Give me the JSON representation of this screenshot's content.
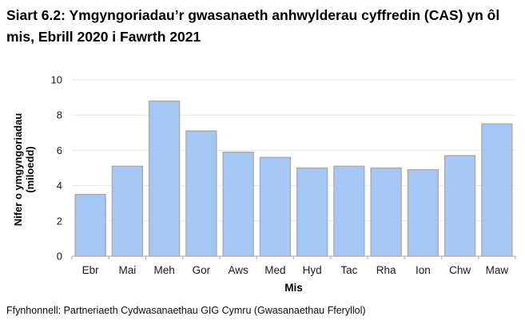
{
  "title": "Siart 6.2: Ymgyngoriadau’r gwasanaeth anhwylderau cyffredin (CAS) yn ôl mis, Ebrill 2020 i Fawrth 2021",
  "source": "Ffynhonnell: Partneriaeth Cydwasanaethau GIG Cymru (Gwasanaethau Fferyllol)",
  "chart_data": {
    "type": "bar",
    "categories": [
      "Ebr",
      "Mai",
      "Meh",
      "Gor",
      "Aws",
      "Med",
      "Hyd",
      "Tac",
      "Rha",
      "Ion",
      "Chw",
      "Maw"
    ],
    "values": [
      3.5,
      5.1,
      8.8,
      7.1,
      5.9,
      5.6,
      5.0,
      5.1,
      5.0,
      4.9,
      5.7,
      7.5
    ],
    "title": "",
    "xlabel": "Mis",
    "ylabel_line1": "Nifer o ymgyngoriadau",
    "ylabel_line2": "(miloedd)",
    "ylim": [
      0,
      10
    ],
    "yticks": [
      0,
      2,
      4,
      6,
      8,
      10
    ],
    "grid": "horizontal",
    "legend": "none",
    "colors": {
      "bar_fill": "#a4c7f5",
      "bar_stroke": "#a8a8a8",
      "gridline": "#e7e7e7",
      "axis_line": "#b3b3b3",
      "tick_text": "#1a1a1a",
      "axis_title_text": "#000000"
    }
  }
}
